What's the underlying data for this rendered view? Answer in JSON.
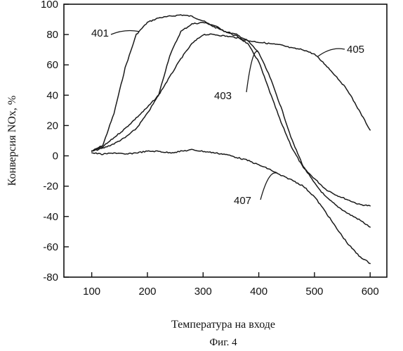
{
  "chart_data": {
    "type": "line",
    "title": "",
    "xlabel": "Температура на входе",
    "ylabel": "Конверсия NOx, %",
    "caption": "Фиг. 4",
    "xlim": [
      50,
      630
    ],
    "ylim": [
      -80,
      100
    ],
    "xticks": [
      100,
      200,
      300,
      400,
      500,
      600
    ],
    "yticks": [
      100,
      80,
      60,
      40,
      20,
      0,
      -20,
      -40,
      -60,
      -80
    ],
    "grid": false,
    "series": [
      {
        "name": "401",
        "x": [
          100,
          120,
          140,
          160,
          180,
          200,
          220,
          240,
          260,
          280,
          300,
          320,
          340,
          360,
          380,
          400,
          420,
          440,
          460,
          480,
          500,
          520,
          540,
          560,
          580,
          600
        ],
        "y": [
          3,
          7,
          28,
          58,
          80,
          88,
          91,
          92,
          93,
          92,
          89,
          85,
          82,
          79,
          74,
          62,
          42,
          22,
          5,
          -8,
          -15,
          -22,
          -26,
          -29,
          -32,
          -33
        ]
      },
      {
        "name": "403",
        "x": [
          100,
          120,
          140,
          160,
          180,
          200,
          220,
          240,
          260,
          280,
          300,
          320,
          340,
          360,
          380,
          400,
          420,
          440,
          460,
          480,
          500,
          520,
          540,
          560,
          580,
          600
        ],
        "y": [
          3,
          5,
          8,
          12,
          18,
          28,
          40,
          66,
          82,
          87,
          88,
          86,
          82,
          80,
          76,
          68,
          52,
          32,
          10,
          -7,
          -18,
          -27,
          -33,
          -38,
          -42,
          -47
        ]
      },
      {
        "name": "405",
        "x": [
          100,
          120,
          140,
          160,
          180,
          200,
          220,
          240,
          260,
          280,
          300,
          320,
          340,
          360,
          380,
          400,
          420,
          440,
          460,
          480,
          500,
          520,
          540,
          560,
          580,
          600
        ],
        "y": [
          3,
          6,
          12,
          18,
          25,
          32,
          40,
          52,
          64,
          74,
          80,
          80,
          79,
          78,
          76,
          75,
          74,
          73,
          71,
          70,
          67,
          60,
          52,
          43,
          30,
          17
        ]
      },
      {
        "name": "407",
        "x": [
          100,
          120,
          140,
          160,
          180,
          200,
          220,
          240,
          260,
          280,
          300,
          320,
          340,
          360,
          380,
          400,
          420,
          440,
          460,
          480,
          500,
          520,
          540,
          560,
          580,
          600
        ],
        "y": [
          2,
          1,
          2,
          1,
          2,
          3,
          3,
          2,
          3,
          4,
          3,
          2,
          1,
          -1,
          -3,
          -6,
          -9,
          -13,
          -16,
          -20,
          -27,
          -37,
          -48,
          -58,
          -66,
          -71
        ]
      }
    ],
    "annotations": [
      {
        "label": "401",
        "series": "401"
      },
      {
        "label": "405",
        "series": "405"
      },
      {
        "label": "403",
        "series": "403"
      },
      {
        "label": "407",
        "series": "407"
      }
    ]
  }
}
